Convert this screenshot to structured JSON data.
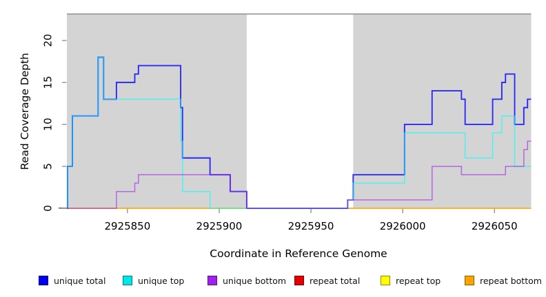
{
  "chart_data": {
    "type": "line",
    "subtype": "step-coverage",
    "title": "",
    "xlabel": "Coordinate in Reference Genome",
    "ylabel": "Read Coverage Depth",
    "xlim": [
      2925817,
      2926070
    ],
    "ylim": [
      0,
      23.1
    ],
    "x_ticks": [
      "2925850",
      "2925900",
      "2925950",
      "2926000",
      "2926050"
    ],
    "x_tick_values": [
      2925850,
      2925900,
      2925950,
      2926000,
      2926050
    ],
    "y_ticks": [
      "0",
      "5",
      "10",
      "15",
      "20"
    ],
    "y_tick_values": [
      0,
      5,
      10,
      15,
      20
    ],
    "grid": false,
    "panel_bg_color": "#d4d4d4",
    "gap_region": {
      "start": 2925915,
      "end": 2925973,
      "color": "#ffffff"
    },
    "top_border_color": "#8c8c8c",
    "axis_tick_color": "#808080",
    "series": [
      {
        "name": "repeat total",
        "color": "#ff0000",
        "opacity": 0.62,
        "width": 1.6,
        "points": [
          [
            2925817,
            0
          ],
          [
            2926070,
            0
          ]
        ]
      },
      {
        "name": "repeat top",
        "color": "#ffff00",
        "opacity": 0.62,
        "width": 1.6,
        "points": [
          [
            2925817,
            0
          ],
          [
            2926070,
            0
          ]
        ]
      },
      {
        "name": "repeat bottom",
        "color": "#ffa500",
        "opacity": 0.62,
        "width": 1.6,
        "points": [
          [
            2925817,
            0
          ],
          [
            2926070,
            0
          ]
        ]
      },
      {
        "name": "unique total",
        "color": "#0000ff",
        "opacity": 0.8,
        "width": 1.9,
        "points": [
          [
            2925817,
            0
          ],
          [
            2925817.4,
            5
          ],
          [
            2925820,
            11
          ],
          [
            2925834,
            18
          ],
          [
            2925837,
            13
          ],
          [
            2925844,
            15
          ],
          [
            2925854,
            16
          ],
          [
            2925856,
            17
          ],
          [
            2925879,
            12
          ],
          [
            2925880,
            6
          ],
          [
            2925895,
            4
          ],
          [
            2925906,
            2
          ],
          [
            2925915,
            0
          ],
          [
            2925970,
            1
          ],
          [
            2925973,
            4
          ],
          [
            2926001,
            10
          ],
          [
            2926016,
            14
          ],
          [
            2926032,
            13
          ],
          [
            2926034,
            10
          ],
          [
            2926049,
            13
          ],
          [
            2926054,
            15
          ],
          [
            2926056,
            16
          ],
          [
            2926061,
            10
          ],
          [
            2926066,
            12
          ],
          [
            2926068,
            13
          ],
          [
            2926070,
            13
          ]
        ]
      },
      {
        "name": "unique top",
        "color": "#00ffff",
        "opacity": 0.62,
        "width": 1.5,
        "points": [
          [
            2925817,
            0
          ],
          [
            2925817.4,
            5
          ],
          [
            2925820,
            11
          ],
          [
            2925834,
            18
          ],
          [
            2925837,
            13
          ],
          [
            2925879,
            8
          ],
          [
            2925880,
            2
          ],
          [
            2925895,
            0
          ],
          [
            2925970,
            1
          ],
          [
            2925973,
            3
          ],
          [
            2926001,
            9
          ],
          [
            2926034,
            6
          ],
          [
            2926049,
            9
          ],
          [
            2926054,
            11
          ],
          [
            2926061,
            5
          ],
          [
            2926070,
            5
          ]
        ]
      },
      {
        "name": "unique bottom",
        "color": "#a020f0",
        "opacity": 0.62,
        "width": 1.5,
        "points": [
          [
            2925817,
            0
          ],
          [
            2925844,
            2
          ],
          [
            2925854,
            3
          ],
          [
            2925856,
            4
          ],
          [
            2925906,
            2
          ],
          [
            2925915,
            0
          ],
          [
            2925970,
            1
          ],
          [
            2926016,
            5
          ],
          [
            2926032,
            4
          ],
          [
            2926056,
            5
          ],
          [
            2926066,
            7
          ],
          [
            2926068,
            8
          ],
          [
            2926070,
            8
          ]
        ]
      }
    ],
    "legend_position": "bottom"
  },
  "legend": {
    "items": [
      {
        "label": "unique total",
        "color": "#0000f0"
      },
      {
        "label": "unique top",
        "color": "#00e6e6"
      },
      {
        "label": "unique bottom",
        "color": "#a020f0"
      },
      {
        "label": "repeat total",
        "color": "#e80000"
      },
      {
        "label": "repeat top",
        "color": "#ffff00"
      },
      {
        "label": "repeat bottom",
        "color": "#ffa500"
      }
    ]
  }
}
